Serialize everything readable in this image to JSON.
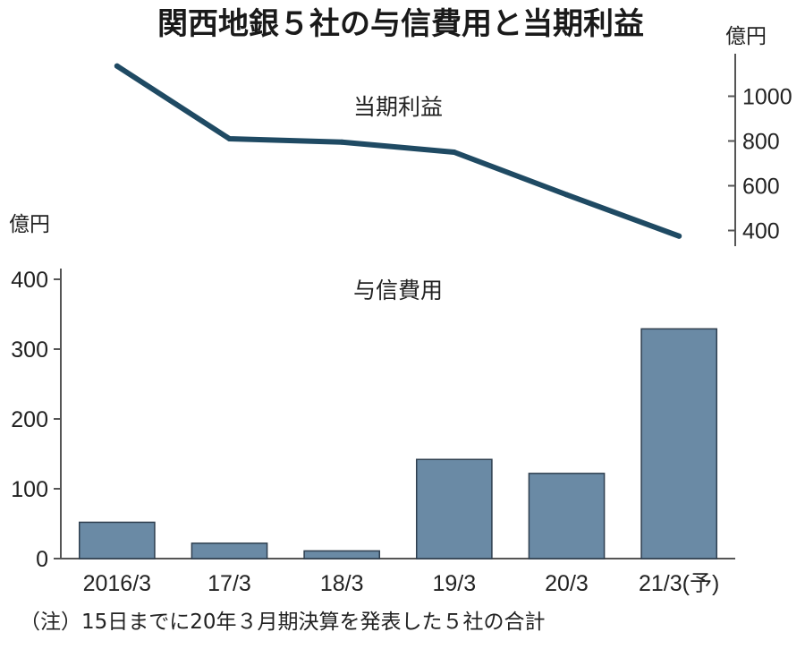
{
  "title": "関西地銀５社の与信費用と当期利益",
  "note": "（注）15日までに20年３月期決算を発表した５社の合計",
  "colors": {
    "line": "#1f4a63",
    "bar": "#6a8aa5",
    "bar_edge": "#2f3f4f",
    "axis": "#555555"
  },
  "chart_data": [
    {
      "type": "line",
      "series_label": "当期利益",
      "unit": "億円",
      "categories": [
        "2016/3",
        "17/3",
        "18/3",
        "19/3",
        "20/3",
        "21/3(予)"
      ],
      "values": [
        1135,
        810,
        795,
        750,
        560,
        375
      ],
      "yticks": [
        400,
        600,
        800,
        1000
      ],
      "ylim": [
        330,
        1190
      ],
      "axis_side": "right"
    },
    {
      "type": "bar",
      "series_label": "与信費用",
      "unit": "億円",
      "categories": [
        "2016/3",
        "17/3",
        "18/3",
        "19/3",
        "20/3",
        "21/3(予)"
      ],
      "values": [
        52,
        22,
        11,
        142,
        122,
        329
      ],
      "yticks": [
        0,
        100,
        200,
        300,
        400
      ],
      "ylim": [
        0,
        400
      ],
      "axis_side": "left"
    }
  ]
}
